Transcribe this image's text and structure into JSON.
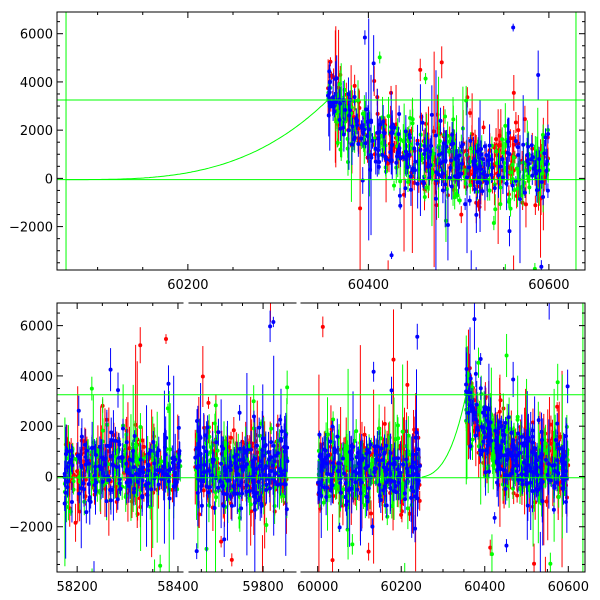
{
  "chart_data": [
    {
      "type": "scatter",
      "title": "",
      "xlabel": "",
      "ylabel": "",
      "xlim": [
        60055,
        60640
      ],
      "ylim": [
        -3800,
        6900
      ],
      "grid": false,
      "x_ticks": [
        "60200",
        "60400",
        "60600"
      ],
      "y_ticks": [
        "-2000",
        "0",
        "2000",
        "4000",
        "6000"
      ],
      "series": [
        {
          "color": "#ff0000",
          "error_bars": true,
          "x_range": [
            60355,
            60600
          ]
        },
        {
          "color": "#00ff00",
          "error_bars": true,
          "x_range": [
            60355,
            60600
          ]
        },
        {
          "color": "#0000ff",
          "error_bars": true,
          "x_range": [
            60355,
            60600
          ]
        }
      ],
      "model_curve": {
        "color": "#00ff00",
        "baseline": -50,
        "peak": 3250,
        "peak_x": 60355,
        "start_x": 60065
      },
      "reference_lines": {
        "color": "#00ff00",
        "y": [
          3250,
          -50
        ],
        "x": [
          60065,
          60630
        ]
      }
    },
    {
      "type": "scatter",
      "title": "",
      "xlabel": "",
      "ylabel": "",
      "ylim": [
        -3800,
        6900
      ],
      "grid": false,
      "broken_x_axis": true,
      "x_segments": [
        {
          "range": [
            58160,
            58410
          ],
          "ticks": [
            "58200",
            "58400"
          ]
        },
        {
          "range": [
            59620,
            59880
          ],
          "ticks": [
            "59800"
          ]
        },
        {
          "range": [
            59960,
            60640
          ],
          "ticks": [
            "60000",
            "60200",
            "60400",
            "60600"
          ]
        }
      ],
      "y_ticks": [
        "-2000",
        "0",
        "2000",
        "4000",
        "6000"
      ],
      "series": [
        {
          "color": "#ff0000",
          "error_bars": true
        },
        {
          "color": "#00ff00",
          "error_bars": true
        },
        {
          "color": "#0000ff",
          "error_bars": true
        }
      ],
      "data_blocks": [
        [
          58175,
          58405
        ],
        [
          59635,
          59860
        ],
        [
          60000,
          60245
        ],
        [
          60355,
          60600
        ]
      ],
      "model_curve": {
        "color": "#00ff00",
        "baseline": -50,
        "peak": 3250,
        "rise_from": 60250,
        "peak_x": 60355
      },
      "reference_lines": {
        "color": "#00ff00",
        "y": [
          3250,
          -50
        ],
        "x": [
          60635
        ]
      }
    }
  ]
}
